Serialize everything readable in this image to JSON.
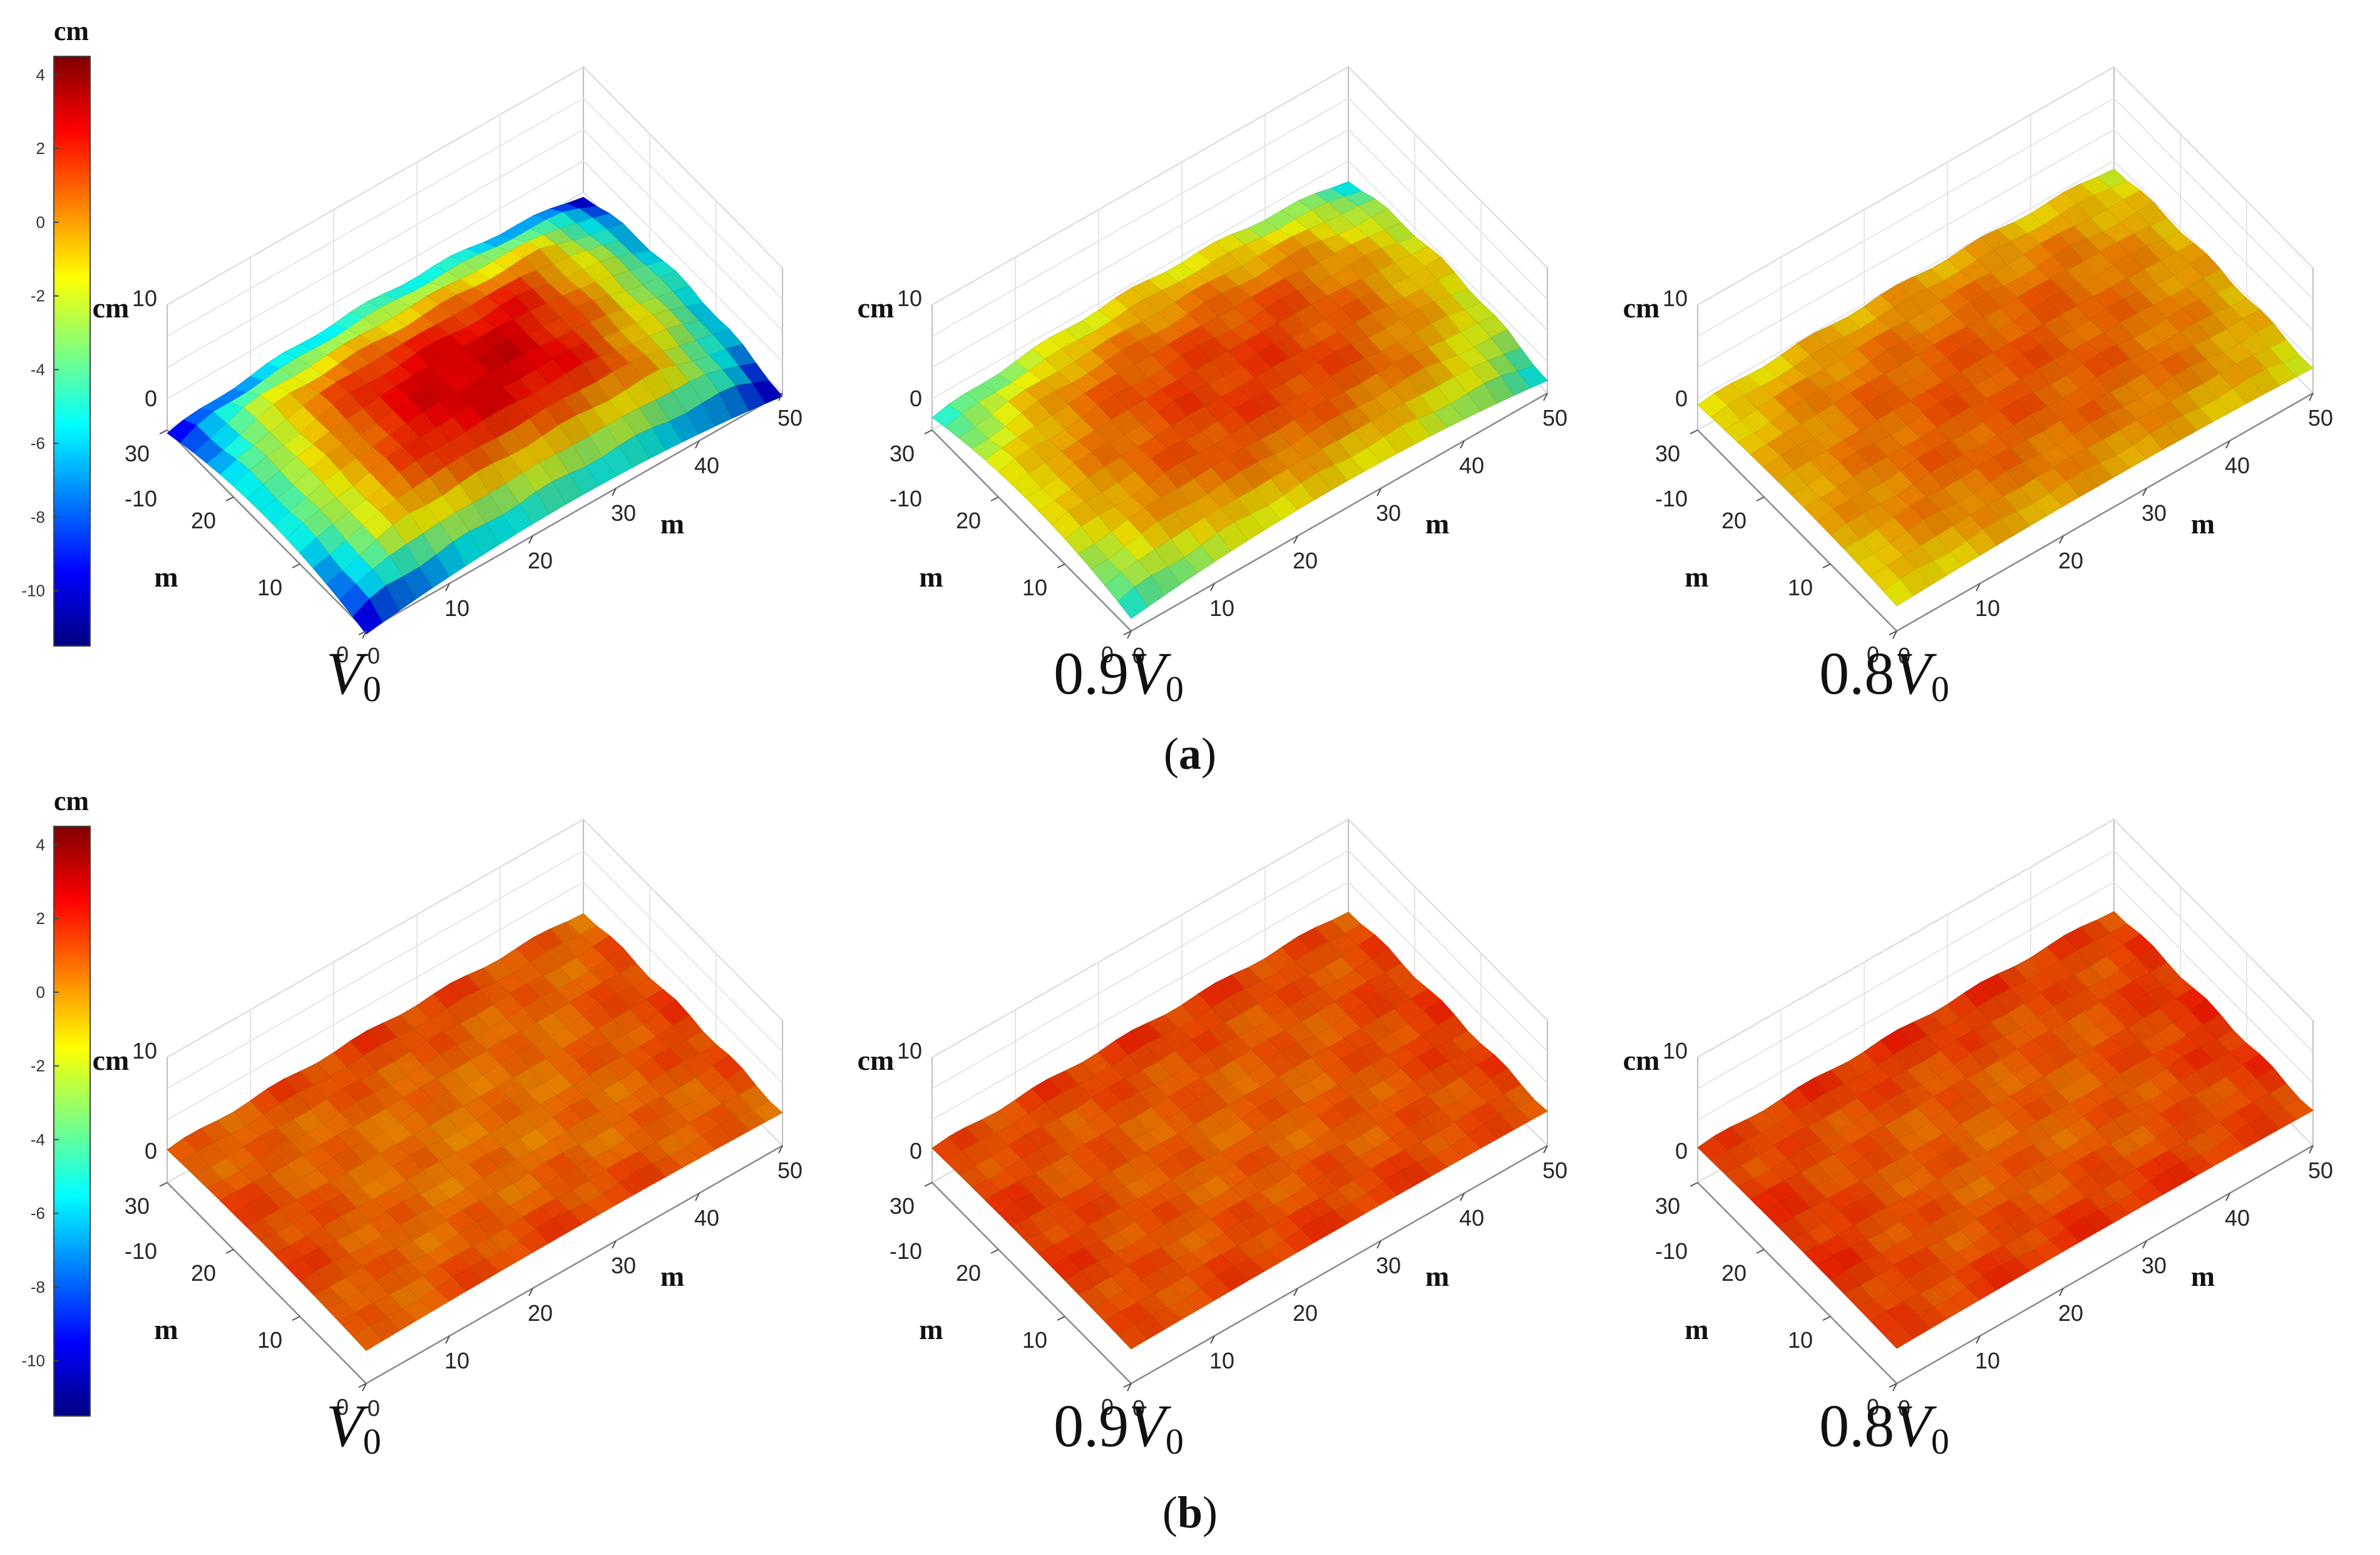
{
  "figure": {
    "panel_labels": [
      "a",
      "b"
    ],
    "subplot_titles": [
      {
        "prefix": "",
        "var": "V",
        "sub": "0"
      },
      {
        "prefix": "0.9",
        "var": "V",
        "sub": "0"
      },
      {
        "prefix": "0.8",
        "var": "V",
        "sub": "0"
      }
    ],
    "z_unit_label": "cm",
    "x_label": "m",
    "y_label": "m",
    "colorbar": {
      "unit_label": "cm",
      "ticks": [
        "4",
        "2",
        "0",
        "-2",
        "-4",
        "-6",
        "-8",
        "-10"
      ],
      "range": [
        -11.5,
        4.5
      ],
      "colormap": "jet",
      "colors": [
        "#00007f",
        "#0000ff",
        "#007fff",
        "#00ffff",
        "#7fff7f",
        "#ffff00",
        "#ff7f00",
        "#ff0000",
        "#7f0000"
      ]
    }
  },
  "chart_data": [
    {
      "type": "surface",
      "panel": "a",
      "title": "V0",
      "xlabel": "m",
      "ylabel": "m",
      "zlabel": "cm",
      "xlim": [
        0,
        50
      ],
      "ylim": [
        0,
        30
      ],
      "zlim": [
        -10,
        10
      ],
      "x_ticks": [
        "0",
        "10",
        "20",
        "30",
        "40",
        "50"
      ],
      "y_ticks": [
        "0",
        "10",
        "20",
        "30"
      ],
      "z_ticks": [
        "10",
        "0",
        "-10"
      ],
      "z_center": 3.0,
      "z_edge": -6.0,
      "z_corner": -11.0
    },
    {
      "type": "surface",
      "panel": "a",
      "title": "0.9V0",
      "xlabel": "m",
      "ylabel": "m",
      "zlabel": "cm",
      "xlim": [
        0,
        50
      ],
      "ylim": [
        0,
        30
      ],
      "zlim": [
        -10,
        10
      ],
      "x_ticks": [
        "0",
        "10",
        "20",
        "30",
        "40",
        "50"
      ],
      "y_ticks": [
        "0",
        "10",
        "20",
        "30"
      ],
      "z_ticks": [
        "10",
        "0",
        "-10"
      ],
      "z_center": 1.5,
      "z_edge": -1.5,
      "z_corner": -6.0
    },
    {
      "type": "surface",
      "panel": "a",
      "title": "0.8V0",
      "xlabel": "m",
      "ylabel": "m",
      "zlabel": "cm",
      "xlim": [
        0,
        50
      ],
      "ylim": [
        0,
        30
      ],
      "zlim": [
        -10,
        10
      ],
      "x_ticks": [
        "0",
        "10",
        "20",
        "30",
        "40",
        "50"
      ],
      "y_ticks": [
        "0",
        "10",
        "20",
        "30"
      ],
      "z_ticks": [
        "10",
        "0",
        "-10"
      ],
      "z_center": 1.0,
      "z_edge": -0.5,
      "z_corner": -2.0
    },
    {
      "type": "surface",
      "panel": "b",
      "title": "V0",
      "xlabel": "m",
      "ylabel": "m",
      "zlabel": "cm",
      "xlim": [
        0,
        50
      ],
      "ylim": [
        0,
        30
      ],
      "zlim": [
        -10,
        10
      ],
      "x_ticks": [
        "0",
        "10",
        "20",
        "30",
        "40",
        "50"
      ],
      "y_ticks": [
        "0",
        "10",
        "20",
        "30"
      ],
      "z_ticks": [
        "10",
        "0",
        "-10"
      ],
      "z_center": 0.5,
      "z_edge": 1.5,
      "z_corner": 0.5
    },
    {
      "type": "surface",
      "panel": "b",
      "title": "0.9V0",
      "xlabel": "m",
      "ylabel": "m",
      "zlabel": "cm",
      "xlim": [
        0,
        50
      ],
      "ylim": [
        0,
        30
      ],
      "zlim": [
        -10,
        10
      ],
      "x_ticks": [
        "0",
        "10",
        "20",
        "30",
        "40",
        "50"
      ],
      "y_ticks": [
        "0",
        "10",
        "20",
        "30"
      ],
      "z_ticks": [
        "10",
        "0",
        "-10"
      ],
      "z_center": 0.8,
      "z_edge": 1.6,
      "z_corner": 1.0
    },
    {
      "type": "surface",
      "panel": "b",
      "title": "0.8V0",
      "xlabel": "m",
      "ylabel": "m",
      "zlabel": "cm",
      "xlim": [
        0,
        50
      ],
      "ylim": [
        0,
        30
      ],
      "zlim": [
        -10,
        10
      ],
      "x_ticks": [
        "0",
        "10",
        "20",
        "30",
        "40",
        "50"
      ],
      "y_ticks": [
        "0",
        "10",
        "20",
        "30"
      ],
      "z_ticks": [
        "10",
        "0",
        "-10"
      ],
      "z_center": 0.8,
      "z_edge": 1.8,
      "z_corner": 1.2
    }
  ]
}
